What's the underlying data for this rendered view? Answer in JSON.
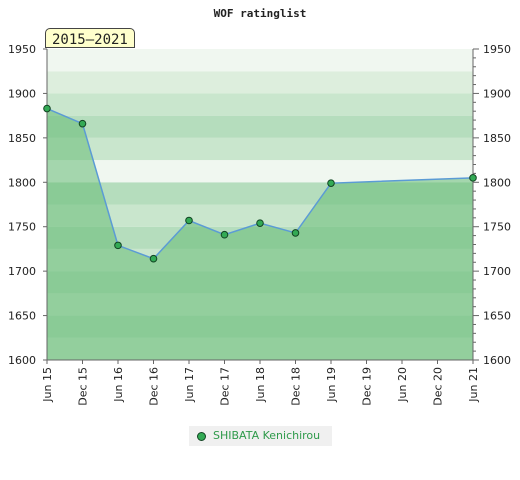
{
  "badge": "2015–2021",
  "chart_data": {
    "type": "area",
    "title": "WOF ratinglist",
    "x": [
      "Jun 15",
      "Dec 15",
      "Jun 16",
      "Dec 16",
      "Jun 17",
      "Dec 17",
      "Jun 18",
      "Dec 18",
      "Jun 19",
      "Dec 19",
      "Jun 20",
      "Dec 20",
      "Jun 21"
    ],
    "ylim": [
      1600,
      1950
    ],
    "yticks": [
      1600,
      1650,
      1700,
      1750,
      1800,
      1850,
      1900,
      1950
    ],
    "series": [
      {
        "name": "SHIBATA Kenichirou",
        "points": [
          {
            "x": "Jun 15",
            "y": 1883
          },
          {
            "x": "Dec 15",
            "y": 1866
          },
          {
            "x": "Jun 16",
            "y": 1729
          },
          {
            "x": "Dec 16",
            "y": 1714
          },
          {
            "x": "Jun 17",
            "y": 1757
          },
          {
            "x": "Dec 17",
            "y": 1741
          },
          {
            "x": "Jun 18",
            "y": 1754
          },
          {
            "x": "Dec 18",
            "y": 1743
          },
          {
            "x": "Jun 19",
            "y": 1799
          },
          {
            "x": "Jun 21",
            "y": 1805
          }
        ]
      }
    ],
    "legend": "bottom-center",
    "y_axis_both_sides": true,
    "colors": {
      "line": "#5b9bd5",
      "fill": "#66bb77",
      "marker": "#33aa55"
    }
  }
}
